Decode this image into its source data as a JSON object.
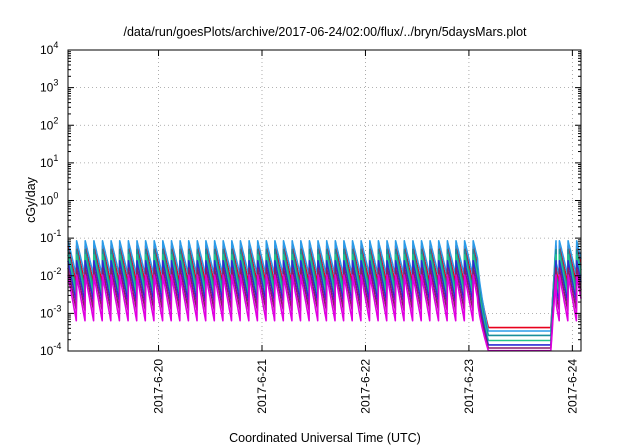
{
  "chart_data": {
    "type": "line",
    "title": "/data/run/goesPlots/archive/2017-06-24/02:00/flux/../bryn/5daysMars.plot",
    "xlabel": "Coordinated Universal Time (UTC)",
    "ylabel": "cGy/day",
    "yscale": "log",
    "ylim": [
      0.0001,
      10000
    ],
    "xlim": [
      "2017-06-19T03:00",
      "2017-06-24T02:00"
    ],
    "x_ticks": [
      "2017-6-20",
      "2017-6-21",
      "2017-6-22",
      "2017-6-23",
      "2017-6-24"
    ],
    "y_ticks": [
      {
        "base": "10",
        "exp": "-4"
      },
      {
        "base": "10",
        "exp": "-3"
      },
      {
        "base": "10",
        "exp": "-2"
      },
      {
        "base": "10",
        "exp": "-1"
      },
      {
        "base": "10",
        "exp": "0"
      },
      {
        "base": "10",
        "exp": "1"
      },
      {
        "base": "10",
        "exp": "2"
      },
      {
        "base": "10",
        "exp": "3"
      },
      {
        "base": "10",
        "exp": "4"
      }
    ],
    "grid": "dotted",
    "sawtooth_period_hours": 2,
    "dropout_start": "2017-06-23T02:00",
    "dropout_end": "2017-06-23T19:00",
    "series": [
      {
        "color": "#e8001c",
        "peak": 0.062,
        "trough": 0.0058,
        "floor": 0.00042
      },
      {
        "color": "#2b9be8",
        "peak": 0.085,
        "trough": 0.0095,
        "floor": 0.00034
      },
      {
        "color": "#1a8e9a",
        "peak": 0.05,
        "trough": 0.004,
        "floor": 0.00026
      },
      {
        "color": "#22c48a",
        "peak": 0.036,
        "trough": 0.0028,
        "floor": 0.00019
      },
      {
        "color": "#2b2bd6",
        "peak": 0.025,
        "trough": 0.0018,
        "floor": 0.000145
      },
      {
        "color": "#8a1a6a",
        "peak": 0.016,
        "trough": 0.0011,
        "floor": 0.00012
      },
      {
        "color": "#e000e0",
        "peak": 0.0105,
        "trough": 0.00058,
        "floor": 0.000102
      }
    ]
  }
}
